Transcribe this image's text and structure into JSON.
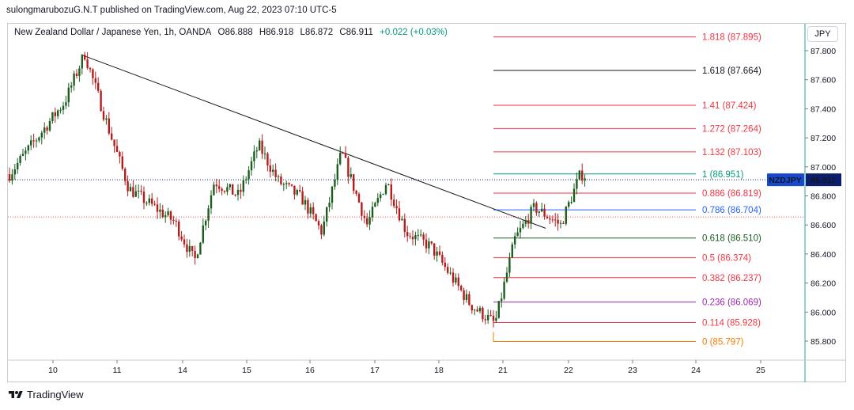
{
  "publisher_line": "sulongmarubozuG.N.T published on TradingView.com, Aug 22, 2023 07:10 UTC-5",
  "legend": {
    "title": "New Zealand Dollar / Japanese Yen, 1h, OANDA",
    "open": "O86.888",
    "high": "H86.918",
    "low": "L86.872",
    "close": "C86.911",
    "change": "+0.022 (+0.03%)"
  },
  "currency": "JPY",
  "brand": "TradingView",
  "colors": {
    "up": "#26a69a",
    "down": "#ef5350",
    "candle_body_up": "#1b5e20",
    "candle_body_down": "#b71c1c",
    "ticker_badge": "#1848cc",
    "price_badge": "#0b1e6e",
    "trendline": "#131722"
  },
  "chart_data": {
    "type": "candlestick",
    "symbol": "NZDJPY",
    "last_price": "86.911",
    "y_axis": {
      "ticks": [
        "87.800",
        "87.600",
        "87.400",
        "87.200",
        "87.000",
        "86.800",
        "86.600",
        "86.400",
        "86.200",
        "86.000",
        "85.800"
      ],
      "range": [
        85.72,
        87.86
      ]
    },
    "x_axis": {
      "ticks": [
        "10",
        "11",
        "14",
        "15",
        "16",
        "17",
        "18",
        "21",
        "22",
        "23",
        "24",
        "25"
      ]
    },
    "price_path_approx": [
      [
        "10",
        86.95
      ],
      [
        "10",
        87.45
      ],
      [
        "10",
        87.78
      ],
      [
        "11",
        87.25
      ],
      [
        "11",
        86.85
      ],
      [
        "14",
        86.62
      ],
      [
        "14",
        86.35
      ],
      [
        "14",
        86.9
      ],
      [
        "15",
        86.8
      ],
      [
        "15",
        87.15
      ],
      [
        "15",
        86.9
      ],
      [
        "16",
        86.78
      ],
      [
        "16",
        86.55
      ],
      [
        "16",
        87.1
      ],
      [
        "17",
        86.6
      ],
      [
        "17",
        86.9
      ],
      [
        "17",
        86.55
      ],
      [
        "18",
        86.45
      ],
      [
        "18",
        86.25
      ],
      [
        "18",
        86.05
      ],
      [
        "21",
        85.92
      ],
      [
        "21",
        86.5
      ],
      [
        "21",
        86.72
      ],
      [
        "22",
        86.6
      ],
      [
        "22",
        86.95
      ],
      [
        "22",
        86.91
      ]
    ],
    "trendline": {
      "from": [
        "10",
        87.78
      ],
      "to": [
        "21",
        86.55
      ]
    },
    "horizontal_lines": [
      86.911,
      86.655
    ],
    "fib_levels": [
      {
        "label": "1.818 (87.895)",
        "value": 87.895,
        "color": "#f23645"
      },
      {
        "label": "1.618 (87.664)",
        "value": 87.664,
        "color": "#131722"
      },
      {
        "label": "1.41 (87.424)",
        "value": 87.424,
        "color": "#f23645"
      },
      {
        "label": "1.272 (87.264)",
        "value": 87.264,
        "color": "#f23645"
      },
      {
        "label": "1.132 (87.103)",
        "value": 87.103,
        "color": "#f23645"
      },
      {
        "label": "1 (86.951)",
        "value": 86.951,
        "color": "#089981"
      },
      {
        "label": "0.886 (86.819)",
        "value": 86.819,
        "color": "#f23645"
      },
      {
        "label": "0.786 (86.704)",
        "value": 86.704,
        "color": "#2962ff"
      },
      {
        "label": "0.618 (86.510)",
        "value": 86.51,
        "color": "#1b5e20"
      },
      {
        "label": "0.5 (86.374)",
        "value": 86.374,
        "color": "#f23645"
      },
      {
        "label": "0.382 (86.237)",
        "value": 86.237,
        "color": "#f23645"
      },
      {
        "label": "0.236 (86.069)",
        "value": 86.069,
        "color": "#9c27b0"
      },
      {
        "label": "0.114 (85.928)",
        "value": 85.928,
        "color": "#f23645"
      },
      {
        "label": "0 (85.797)",
        "value": 85.797,
        "color": "#f57c00"
      }
    ]
  }
}
